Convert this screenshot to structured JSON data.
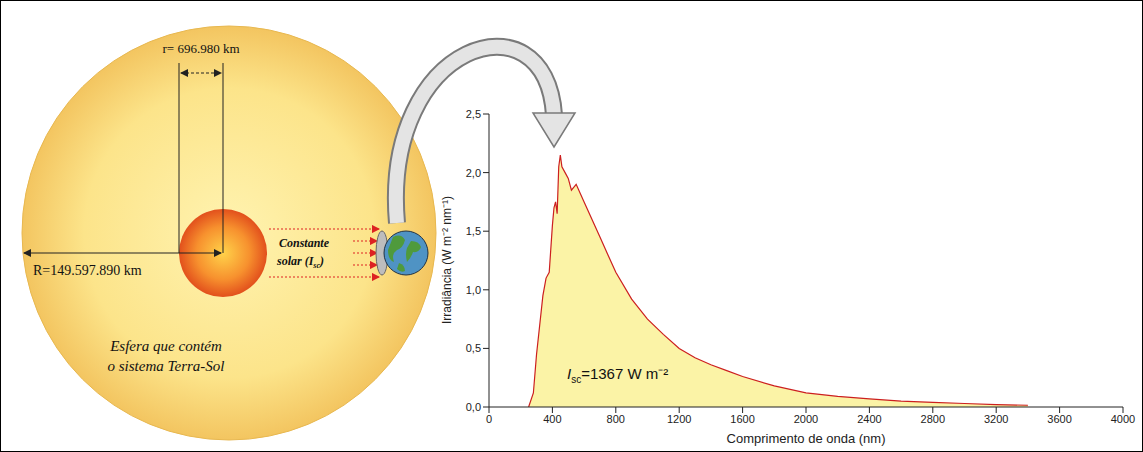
{
  "diagram": {
    "sun_radius_label": "r= 696.980 km",
    "distance_label": "R=149.597.890 km",
    "solar_constant_label": {
      "line1": "Constante",
      "line2": "solar (I",
      "subscript": "sc",
      "rest": ")"
    },
    "sphere_label": [
      "Esfera que contém",
      "o sistema Terra-Sol"
    ]
  },
  "chart_data": {
    "type": "area",
    "x_label": "Comprimento de onda (nm)",
    "y_label": "Irradiância (W m⁻² nm⁻¹)",
    "x": [
      250,
      280,
      300,
      320,
      340,
      360,
      380,
      400,
      410,
      420,
      430,
      440,
      450,
      460,
      480,
      500,
      520,
      550,
      600,
      650,
      700,
      750,
      800,
      900,
      1000,
      1100,
      1200,
      1300,
      1400,
      1500,
      1600,
      1800,
      2000,
      2200,
      2400,
      2600,
      2800,
      3000,
      3200,
      3400
    ],
    "values": [
      0.0,
      0.12,
      0.45,
      0.7,
      0.95,
      1.1,
      1.15,
      1.55,
      1.7,
      1.75,
      1.65,
      2.05,
      2.15,
      2.05,
      2.0,
      1.95,
      1.85,
      1.9,
      1.75,
      1.6,
      1.45,
      1.3,
      1.15,
      0.92,
      0.75,
      0.62,
      0.5,
      0.42,
      0.36,
      0.31,
      0.26,
      0.18,
      0.12,
      0.09,
      0.07,
      0.05,
      0.04,
      0.03,
      0.02,
      0.015
    ],
    "color": "#cc1f1f",
    "xlim": [
      0,
      4000
    ],
    "xticks": [
      0,
      400,
      800,
      1200,
      1600,
      2000,
      2400,
      2800,
      3200,
      3600,
      4000
    ],
    "ylim": [
      0,
      2.5
    ],
    "yticks": [
      {
        "value": 0,
        "label": "0,0"
      },
      {
        "value": 0.5,
        "label": "0,5"
      },
      {
        "value": 1,
        "label": "1,0"
      },
      {
        "value": 1.5,
        "label": "1,5"
      },
      {
        "value": 2,
        "label": "2,0"
      },
      {
        "value": 2.5,
        "label": "2,5"
      }
    ],
    "grid": false,
    "annotation": {
      "text": "I",
      "subscript": "sc",
      "rest": "=1367 W m⁻²"
    }
  }
}
